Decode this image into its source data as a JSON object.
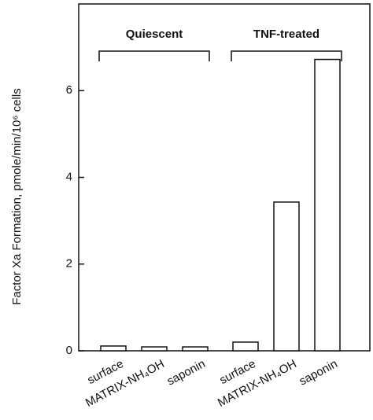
{
  "chart_data": {
    "type": "bar",
    "y_label": "Factor Xa Formation, pmole/min/10⁶ cells",
    "groups": [
      "Quiescent",
      "TNF-treated"
    ],
    "categories": [
      "surface",
      "MATRIX-NH₄OH",
      "saponin",
      "surface",
      "MATRIX-NH₄OH",
      "saponin"
    ],
    "values": [
      0.11,
      0.09,
      0.09,
      0.2,
      3.43,
      6.72
    ],
    "color": "#ffffff",
    "ylim": [
      0,
      8
    ],
    "yticks": [
      0,
      2,
      4,
      6
    ],
    "grid": false
  }
}
